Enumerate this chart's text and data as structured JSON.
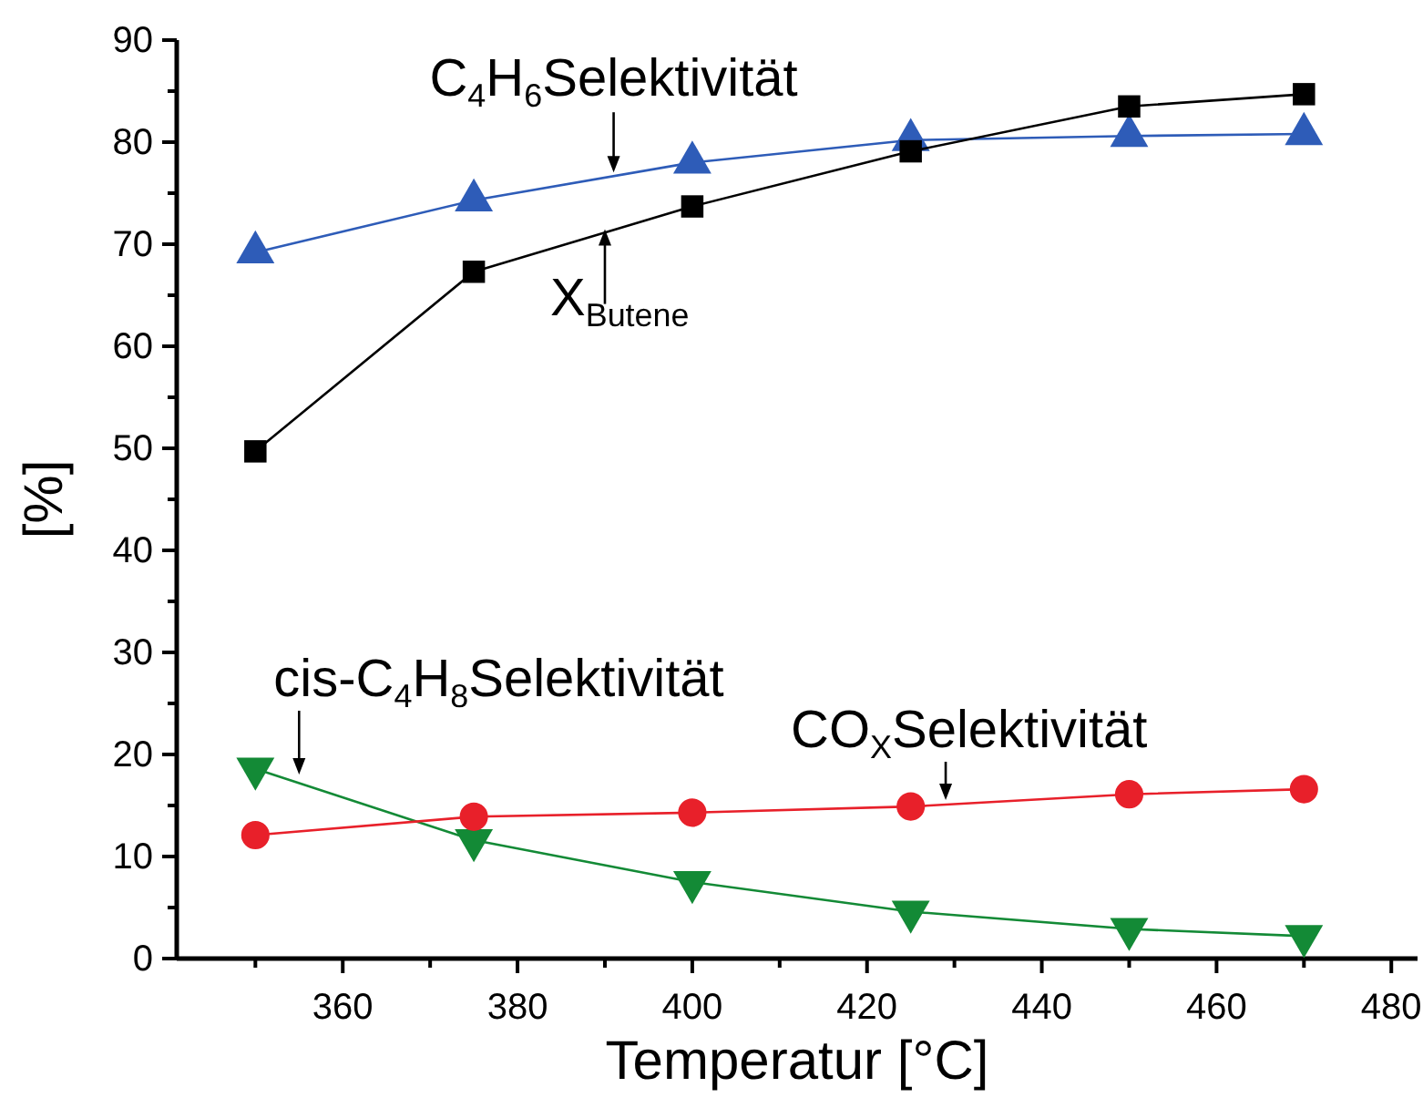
{
  "chart_data": {
    "type": "line",
    "xlabel": "Temperatur [°C]",
    "ylabel": "[%]",
    "x": [
      350,
      375,
      400,
      425,
      450,
      470
    ],
    "xlim": [
      341,
      483
    ],
    "xticks": [
      {
        "value": 350,
        "label": null
      },
      360,
      {
        "value": 370,
        "label": null
      },
      380,
      {
        "value": 390,
        "label": null
      },
      400,
      {
        "value": 410,
        "label": null
      },
      420,
      {
        "value": 430,
        "label": null
      },
      440,
      {
        "value": 450,
        "label": null
      },
      460,
      {
        "value": 470,
        "label": null
      },
      480
    ],
    "ylim": [
      0,
      90
    ],
    "yticks": [
      0,
      {
        "value": 5,
        "label": null
      },
      10,
      {
        "value": 15,
        "label": null
      },
      20,
      {
        "value": 25,
        "label": null
      },
      30,
      {
        "value": 35,
        "label": null
      },
      40,
      {
        "value": 45,
        "label": null
      },
      50,
      {
        "value": 55,
        "label": null
      },
      60,
      {
        "value": 65,
        "label": null
      },
      70,
      {
        "value": 75,
        "label": null
      },
      80,
      {
        "value": 85,
        "label": null
      },
      90
    ],
    "series": [
      {
        "color": "#000000",
        "marker": "square",
        "values": [
          49.7,
          67.3,
          73.7,
          79.1,
          83.5,
          84.7
        ]
      },
      {
        "color": "#2e5cb8",
        "marker": "triangle",
        "values": [
          69.2,
          74.3,
          78.0,
          80.2,
          80.6,
          80.8
        ]
      },
      {
        "color": "#e8202a",
        "marker": "circle",
        "values": [
          12.1,
          13.9,
          14.3,
          14.9,
          16.1,
          16.6
        ]
      },
      {
        "color": "#138a36",
        "marker": "triangle-down",
        "values": [
          18.6,
          11.6,
          7.5,
          4.6,
          2.9,
          2.2
        ]
      }
    ],
    "annotations": [
      {
        "text": "C$_{4}$H$_{6}$Selektivität",
        "x": 391,
        "y": 76.5
      },
      {
        "text": "X$_{Butene}$",
        "x": 390,
        "y": 72
      },
      {
        "text": "cis-C$_{4}$H$_{8}$Selektivität",
        "x": 355,
        "y": 17.5
      },
      {
        "text": "CO$_{X}$Selektivität",
        "x": 429,
        "y": 15
      }
    ]
  }
}
